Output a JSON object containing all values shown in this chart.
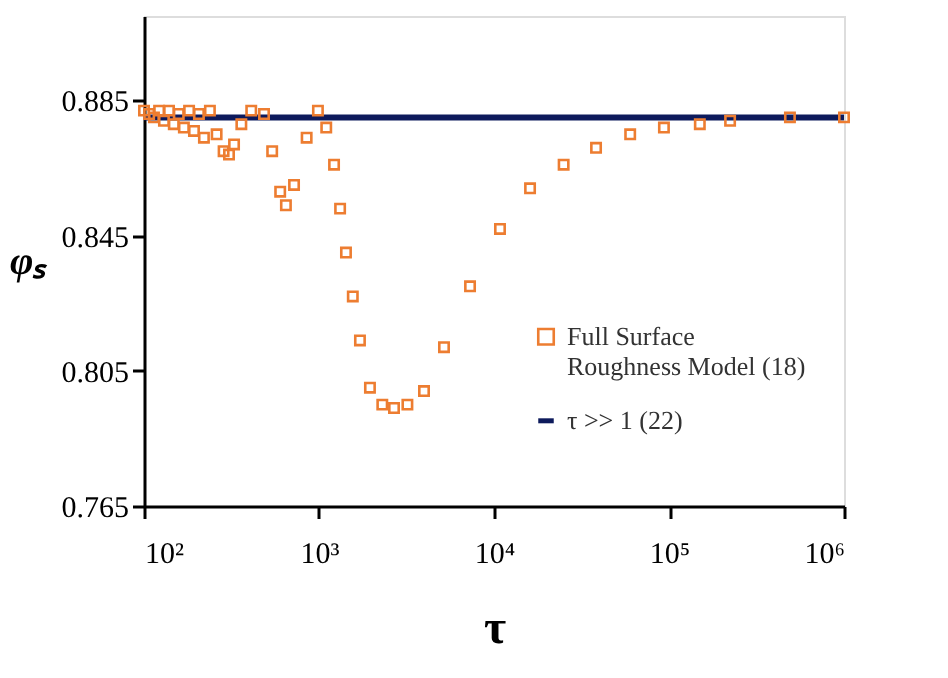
{
  "chart_data": {
    "type": "scatter",
    "xlabel": "τ",
    "ylabel": "φₛ",
    "log": "x",
    "grid": false,
    "legend": "bottom right",
    "xlim": [
      100,
      1000000
    ],
    "ylim": [
      0.765,
      0.91
    ],
    "xticks": [
      {
        "value": 100,
        "label": "10²"
      },
      {
        "value": 1000,
        "label": "10³"
      },
      {
        "value": 10000,
        "label": "10⁴"
      },
      {
        "value": 100000,
        "label": "10⁵"
      },
      {
        "value": 1000000,
        "label": "10⁶"
      }
    ],
    "yticks": [
      0.765,
      0.805,
      0.845,
      0.885
    ],
    "series": [
      {
        "name": "Full Surface Roughness Model (18)",
        "color": "#ed7d31",
        "marker": "square",
        "x": [
          100,
          107,
          114,
          122,
          130,
          139,
          148,
          158,
          169,
          181,
          193,
          206,
          220,
          238,
          260,
          285,
          306,
          327,
          360,
          410,
          485,
          540,
          600,
          647,
          720,
          850,
          986,
          1100,
          1219,
          1320,
          1426,
          1560,
          1714,
          1955,
          2300,
          2683,
          3200,
          3981,
          5179,
          7295,
          10820,
          16070,
          25000,
          38290,
          60000,
          93540,
          150000,
          223400,
          491000,
          1000000
        ],
        "values": [
          0.882,
          0.881,
          0.88,
          0.882,
          0.879,
          0.882,
          0.878,
          0.881,
          0.877,
          0.882,
          0.876,
          0.881,
          0.874,
          0.882,
          0.875,
          0.87,
          0.869,
          0.872,
          0.878,
          0.882,
          0.881,
          0.87,
          0.858,
          0.854,
          0.86,
          0.874,
          0.882,
          0.877,
          0.866,
          0.853,
          0.84,
          0.827,
          0.814,
          0.8,
          0.795,
          0.794,
          0.795,
          0.799,
          0.812,
          0.83,
          0.847,
          0.859,
          0.866,
          0.871,
          0.875,
          0.877,
          0.878,
          0.879,
          0.88,
          0.88
        ]
      },
      {
        "name": "τ >> 1 (22)",
        "type": "line",
        "color": "#0d1a5c",
        "line_style": "solid",
        "x": [
          100,
          1000000
        ],
        "values": [
          0.88,
          0.88
        ]
      }
    ]
  }
}
